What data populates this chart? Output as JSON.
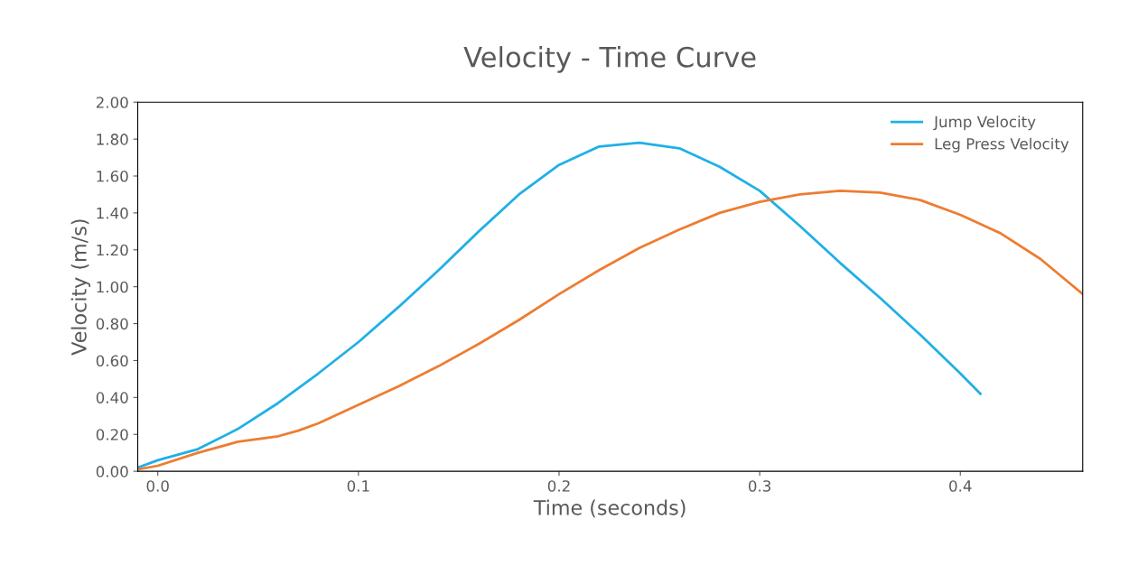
{
  "chart_data": {
    "type": "line",
    "title": "Velocity - Time Curve",
    "xlabel": "Time (seconds)",
    "ylabel": "Velocity (m/s)",
    "xlim": [
      -0.01,
      0.461
    ],
    "xticks": [
      {
        "value": 0,
        "label": "0.0"
      },
      {
        "value": 0.1,
        "label": "0.1"
      },
      {
        "value": 0.2,
        "label": "0.2"
      },
      {
        "value": 0.3,
        "label": "0.3"
      },
      {
        "value": 0.4,
        "label": "0.4"
      }
    ],
    "ylim": [
      0,
      2
    ],
    "yticks": [
      {
        "value": 0,
        "label": "0.00"
      },
      {
        "value": 0.2,
        "label": "0.20"
      },
      {
        "value": 0.4,
        "label": "0.40"
      },
      {
        "value": 0.6,
        "label": "0.60"
      },
      {
        "value": 0.8,
        "label": "0.80"
      },
      {
        "value": 1.0,
        "label": "1.00"
      },
      {
        "value": 1.2,
        "label": "1.20"
      },
      {
        "value": 1.4,
        "label": "1.40"
      },
      {
        "value": 1.6,
        "label": "1.60"
      },
      {
        "value": 1.8,
        "label": "1.80"
      },
      {
        "value": 2.0,
        "label": "2.00"
      }
    ],
    "grid": false,
    "legend": "top right",
    "marker": "none",
    "line_style": "solid",
    "series": [
      {
        "name": "Jump Velocity",
        "color": "#1fb0e6",
        "x": [
          -0.01,
          0.0,
          0.02,
          0.04,
          0.06,
          0.08,
          0.1,
          0.12,
          0.14,
          0.16,
          0.18,
          0.2,
          0.22,
          0.24,
          0.26,
          0.28,
          0.3,
          0.32,
          0.34,
          0.36,
          0.38,
          0.4,
          0.41
        ],
        "values": [
          0.02,
          0.06,
          0.12,
          0.23,
          0.37,
          0.53,
          0.7,
          0.89,
          1.09,
          1.3,
          1.5,
          1.66,
          1.76,
          1.78,
          1.75,
          1.65,
          1.52,
          1.33,
          1.13,
          0.94,
          0.74,
          0.53,
          0.42
        ]
      },
      {
        "name": "Leg Press Velocity",
        "color": "#ed7d31",
        "x": [
          -0.01,
          0.0,
          0.02,
          0.04,
          0.06,
          0.07,
          0.08,
          0.1,
          0.12,
          0.14,
          0.16,
          0.18,
          0.2,
          0.22,
          0.24,
          0.26,
          0.28,
          0.3,
          0.32,
          0.34,
          0.36,
          0.38,
          0.4,
          0.42,
          0.44,
          0.461
        ],
        "values": [
          0.01,
          0.03,
          0.1,
          0.16,
          0.19,
          0.22,
          0.26,
          0.36,
          0.46,
          0.57,
          0.69,
          0.82,
          0.96,
          1.09,
          1.21,
          1.31,
          1.4,
          1.46,
          1.5,
          1.52,
          1.51,
          1.47,
          1.39,
          1.29,
          1.15,
          0.96
        ]
      }
    ]
  }
}
